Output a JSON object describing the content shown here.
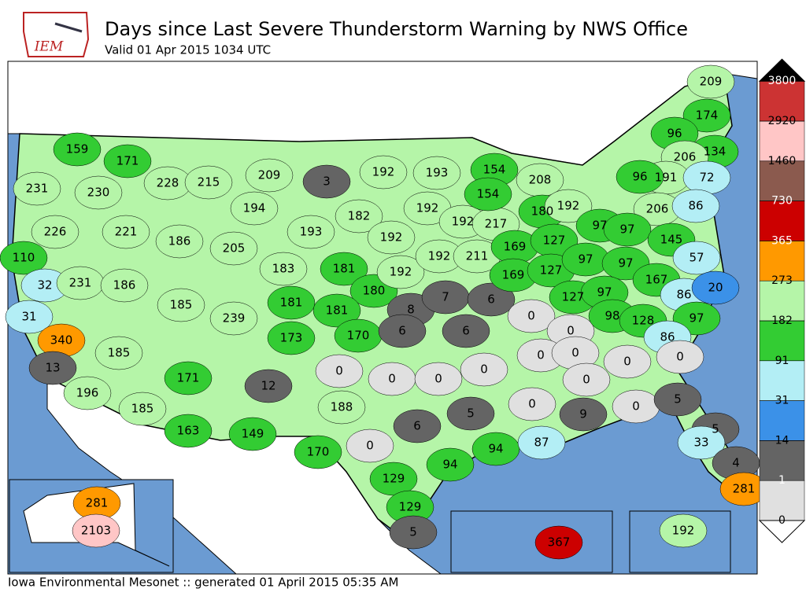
{
  "header": {
    "title": "Days since Last Severe Thunderstorm Warning by NWS Office",
    "subtitle": "Valid 01 Apr 2015 1034 UTC",
    "logo": "IEM"
  },
  "footer": "Iowa Environmental Mesonet :: generated 01 April 2015 05:35 AM",
  "legend": {
    "ticks": [
      0,
      1,
      14,
      31,
      91,
      182,
      273,
      365,
      730,
      1460,
      2920,
      3800
    ],
    "colors": [
      "#e0e0e0",
      "#646464",
      "#3b91e8",
      "#b3eef5",
      "#33cc33",
      "#b5f5a8",
      "#ff9900",
      "#cc0000",
      "#8b5a4e",
      "#ffc6c6",
      "#cc3333"
    ],
    "over_color": "#000000",
    "under_color": "#ffffff"
  },
  "map": {
    "labels": [
      159,
      171,
      231,
      230,
      228,
      215,
      209,
      3,
      192,
      193,
      154,
      208,
      209,
      174,
      96,
      134,
      206,
      191,
      96,
      72,
      226,
      221,
      186,
      194,
      182,
      193,
      192,
      192,
      192,
      217,
      154,
      180,
      192,
      206,
      86,
      110,
      205,
      183,
      181,
      180,
      192,
      192,
      211,
      169,
      127,
      97,
      97,
      145,
      57,
      32,
      231,
      186,
      185,
      239,
      181,
      181,
      8,
      7,
      6,
      169,
      127,
      97,
      97,
      167,
      86,
      20,
      31,
      340,
      173,
      170,
      6,
      6,
      0,
      0,
      127,
      97,
      98,
      128,
      97,
      86,
      0,
      13,
      185,
      171,
      12,
      0,
      0,
      0,
      0,
      0,
      0,
      0,
      0,
      0,
      0,
      196,
      185,
      163,
      149,
      188,
      0,
      6,
      5,
      9,
      5,
      5,
      33,
      4,
      281,
      170,
      129,
      94,
      94,
      87,
      129,
      5,
      281,
      2103,
      367,
      192
    ]
  }
}
